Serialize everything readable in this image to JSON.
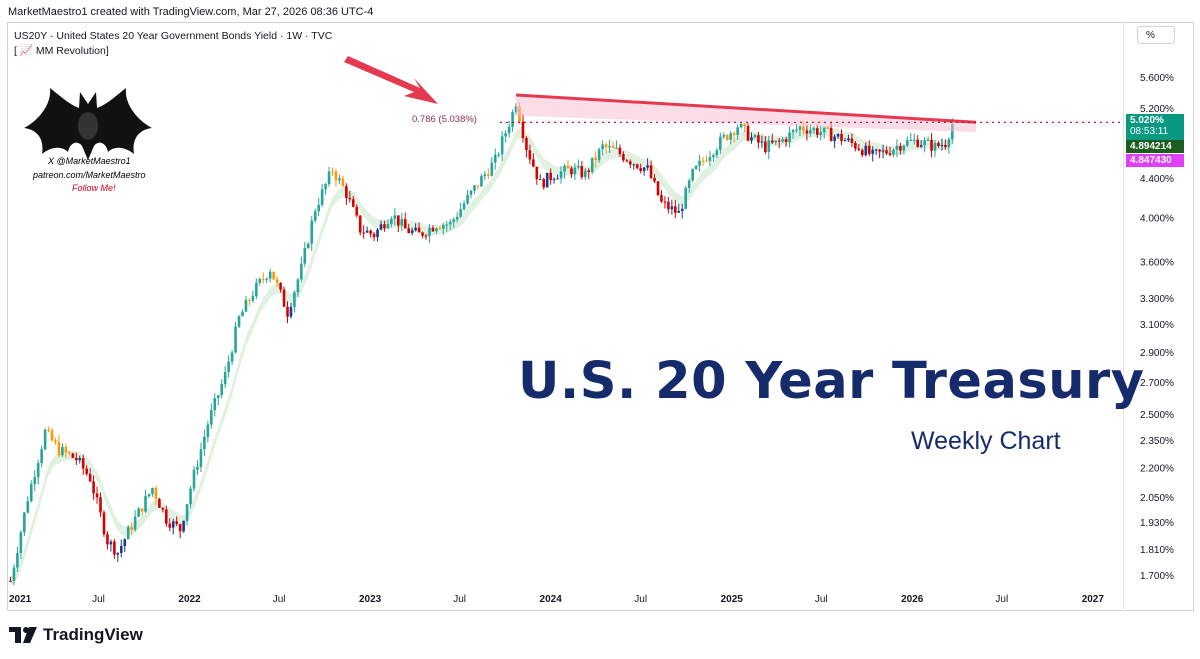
{
  "header": {
    "attribution": "MarketMaestro1 created with TradingView.com, Mar 27, 2026 08:36 UTC-4"
  },
  "legend": {
    "symbol_line": "US20Y · United States 20 Year Government Bonds Yield · 1W · TVC",
    "indicator_line": "[ 📈 MM Revolution]",
    "scale_button": "%"
  },
  "branding": {
    "handle_x": "X @MarketMaestro1",
    "handle_patreon": "patreon.com/MarketMaestro",
    "follow": "Follow Me!",
    "footer_logo_text": "TradingView",
    "logo_icon": "bat-logo-icon",
    "footer_icon": "tradingview-tv-icon"
  },
  "overlay_text": {
    "title": "U.S. 20 Year Treasury",
    "subtitle": "Weekly Chart",
    "fib_label": "0.786 (5.038%)"
  },
  "price_tags": {
    "last": "5.020%",
    "countdown": "08:53:11",
    "ema_fast": "4.894214",
    "ema_slow": "4.847430"
  },
  "colors": {
    "up_candle": "#26a69a",
    "down_candle": "#ef5350",
    "neutral_candle": "#ff9800",
    "weak_down_candle": "#d50000",
    "blue_candle": "#1e3a8a",
    "resistance_line": "#e53950",
    "fib_dotted": "#b71c3c",
    "arrow": "#e53950",
    "title_color": "#152b6b"
  },
  "chart_data": {
    "type": "line",
    "title": "",
    "ylabel": "",
    "xlabel": "",
    "scale": "log",
    "ylim": [
      1.66,
      5.85
    ],
    "y_ticks": [
      "5.600%",
      "5.200%",
      "4.800%",
      "4.400%",
      "4.000%",
      "3.600%",
      "3.300%",
      "3.100%",
      "2.900%",
      "2.700%",
      "2.500%",
      "2.350%",
      "2.200%",
      "2.050%",
      "1.930%",
      "1.810%",
      "1.700%"
    ],
    "x_ticks": [
      "2021",
      "Jul",
      "2022",
      "Jul",
      "2023",
      "Jul",
      "2024",
      "Jul",
      "2025",
      "Jul",
      "2026",
      "Jul",
      "2027"
    ],
    "xlim": [
      "2021-01-01",
      "2027-03-01"
    ],
    "grid": false,
    "series": [
      {
        "values_note_free": true,
        "x": [
          "2021-01-04",
          "2021-02-08",
          "2021-03-15",
          "2021-04-12",
          "2021-05-17",
          "2021-06-14",
          "2021-07-19",
          "2021-08-09",
          "2021-09-13",
          "2021-10-18",
          "2021-11-15",
          "2021-12-13",
          "2022-01-03",
          "2022-02-07",
          "2022-03-14",
          "2022-04-11",
          "2022-05-09",
          "2022-06-13",
          "2022-07-18",
          "2022-08-15",
          "2022-09-12",
          "2022-10-17",
          "2022-11-14",
          "2022-12-12",
          "2023-01-09",
          "2023-02-13",
          "2023-03-13",
          "2023-04-10",
          "2023-05-15",
          "2023-06-12",
          "2023-07-17",
          "2023-08-14",
          "2023-09-11",
          "2023-10-16",
          "2023-10-23",
          "2023-11-13",
          "2023-12-11",
          "2024-01-08",
          "2024-02-12",
          "2024-03-11",
          "2024-04-15",
          "2024-05-13",
          "2024-06-10",
          "2024-07-15",
          "2024-08-12",
          "2024-09-16",
          "2024-10-14",
          "2024-11-11",
          "2024-12-16",
          "2025-01-13",
          "2025-02-10",
          "2025-03-10",
          "2025-04-07",
          "2025-05-19",
          "2025-06-16",
          "2025-07-14",
          "2025-08-11",
          "2025-09-15",
          "2025-10-13",
          "2025-11-10",
          "2025-12-15",
          "2026-01-12",
          "2026-02-16",
          "2026-03-09",
          "2026-03-23"
        ],
        "values": [
          1.68,
          2.05,
          2.4,
          2.3,
          2.25,
          2.15,
          1.85,
          1.8,
          1.95,
          2.1,
          1.95,
          1.9,
          2.1,
          2.45,
          2.75,
          3.15,
          3.35,
          3.55,
          3.2,
          3.55,
          4.1,
          4.5,
          4.25,
          3.9,
          3.85,
          4.05,
          3.9,
          3.85,
          3.95,
          3.95,
          4.2,
          4.4,
          4.6,
          5.15,
          5.3,
          4.75,
          4.35,
          4.45,
          4.5,
          4.45,
          4.75,
          4.7,
          4.6,
          4.5,
          4.15,
          4.05,
          4.45,
          4.65,
          4.85,
          5.0,
          4.85,
          4.75,
          4.8,
          4.98,
          4.95,
          4.9,
          4.85,
          4.75,
          4.65,
          4.7,
          4.8,
          4.82,
          4.75,
          4.8,
          5.02
        ]
      }
    ],
    "annotations": [
      "0.786 (5.038%)"
    ]
  }
}
